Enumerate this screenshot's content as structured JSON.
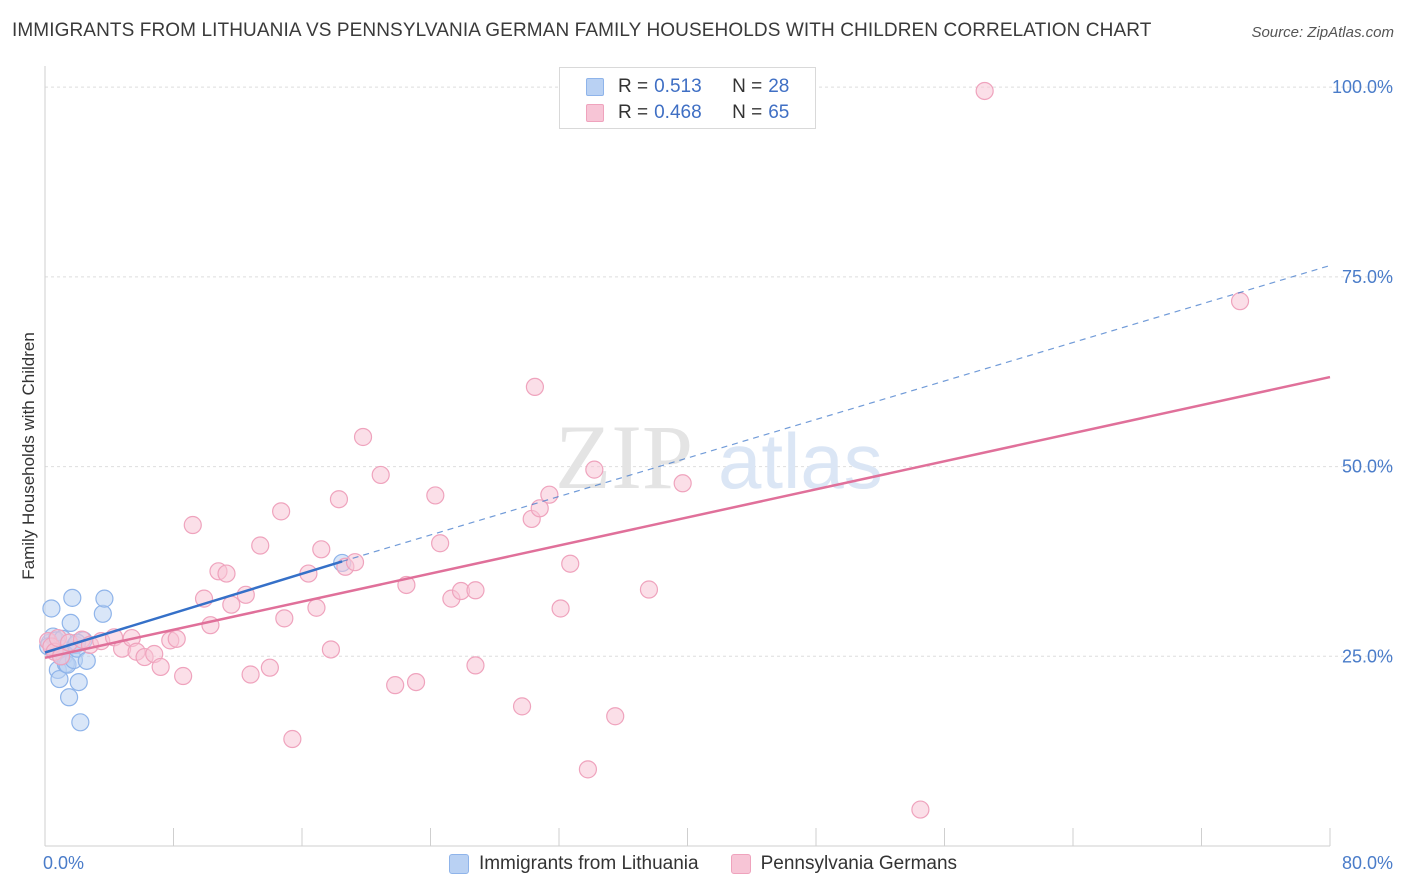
{
  "title": "IMMIGRANTS FROM LITHUANIA VS PENNSYLVANIA GERMAN FAMILY HOUSEHOLDS WITH CHILDREN CORRELATION CHART",
  "source": "Source: ZipAtlas.com",
  "watermark": {
    "zip": "ZIP",
    "atlas": "atlas"
  },
  "legend": {
    "rows": [
      {
        "r_label": "R =",
        "r_value": "0.513",
        "n_label": "N =",
        "n_value": "28"
      },
      {
        "r_label": "R =",
        "r_value": "0.468",
        "n_label": "N =",
        "n_value": "65"
      }
    ]
  },
  "chart_data": {
    "type": "scatter",
    "title": "IMMIGRANTS FROM LITHUANIA VS PENNSYLVANIA GERMAN FAMILY HOUSEHOLDS WITH CHILDREN CORRELATION CHART",
    "xlabel": "",
    "ylabel": "Family Households with Children",
    "xlim": [
      0,
      80
    ],
    "ylim": [
      0,
      102
    ],
    "x_tick_labels": [
      "0.0%",
      "80.0%"
    ],
    "y_ticks": [
      25,
      50,
      75,
      100
    ],
    "y_tick_labels": [
      "25.0%",
      "50.0%",
      "75.0%",
      "100.0%"
    ],
    "grid": true,
    "series": [
      {
        "name": "Immigrants from Lithuania",
        "color": "#8fb4ea",
        "fill": "#b9d1f3",
        "line_color": "#3570c8",
        "trend": {
          "x0": 0,
          "y0": 25.5,
          "x1": 18.5,
          "y1": 37.5
        },
        "trend_ext": {
          "x0": 18.5,
          "y0": 37.5,
          "x1": 80,
          "y1": 76.5
        },
        "points": [
          [
            0.3,
            26.8
          ],
          [
            0.4,
            31.3
          ],
          [
            0.5,
            27.6
          ],
          [
            0.6,
            25.6
          ],
          [
            0.7,
            27.1
          ],
          [
            0.8,
            23.2
          ],
          [
            0.9,
            22.0
          ],
          [
            1.0,
            26.0
          ],
          [
            1.1,
            27.3
          ],
          [
            1.2,
            25.1
          ],
          [
            1.3,
            24.0
          ],
          [
            1.4,
            23.9
          ],
          [
            1.5,
            19.6
          ],
          [
            1.6,
            29.4
          ],
          [
            1.7,
            32.7
          ],
          [
            1.8,
            24.5
          ],
          [
            1.9,
            26.5
          ],
          [
            2.0,
            26.0
          ],
          [
            2.1,
            21.6
          ],
          [
            2.2,
            16.3
          ],
          [
            2.4,
            27.1
          ],
          [
            2.6,
            24.4
          ],
          [
            3.6,
            30.6
          ],
          [
            3.7,
            32.6
          ],
          [
            18.5,
            37.3
          ],
          [
            0.2,
            26.3
          ],
          [
            1.0,
            25.0
          ],
          [
            2.0,
            26.8
          ]
        ]
      },
      {
        "name": "Pennsylvania Germans",
        "color": "#efa3bd",
        "fill": "#f7c5d6",
        "line_color": "#e0709a",
        "trend": {
          "x0": 0,
          "y0": 24.8,
          "x1": 80,
          "y1": 61.8
        },
        "points": [
          [
            0.2,
            27.0
          ],
          [
            0.4,
            26.3
          ],
          [
            0.6,
            25.6
          ],
          [
            0.8,
            27.4
          ],
          [
            1.0,
            25.0
          ],
          [
            1.5,
            26.8
          ],
          [
            2.3,
            27.2
          ],
          [
            2.8,
            26.5
          ],
          [
            3.5,
            27.0
          ],
          [
            4.3,
            27.5
          ],
          [
            4.8,
            26.0
          ],
          [
            5.4,
            27.4
          ],
          [
            5.7,
            25.6
          ],
          [
            6.2,
            24.9
          ],
          [
            6.8,
            25.3
          ],
          [
            7.2,
            23.6
          ],
          [
            7.8,
            27.1
          ],
          [
            8.2,
            27.3
          ],
          [
            8.6,
            22.4
          ],
          [
            9.2,
            42.3
          ],
          [
            9.9,
            32.6
          ],
          [
            10.3,
            29.1
          ],
          [
            10.8,
            36.2
          ],
          [
            11.3,
            35.9
          ],
          [
            11.6,
            31.8
          ],
          [
            12.5,
            33.1
          ],
          [
            12.8,
            22.6
          ],
          [
            13.4,
            39.6
          ],
          [
            14.0,
            23.5
          ],
          [
            14.7,
            44.1
          ],
          [
            14.9,
            30.0
          ],
          [
            15.4,
            14.1
          ],
          [
            16.4,
            35.9
          ],
          [
            16.9,
            31.4
          ],
          [
            17.2,
            39.1
          ],
          [
            17.8,
            25.9
          ],
          [
            18.3,
            45.7
          ],
          [
            18.7,
            36.8
          ],
          [
            19.3,
            37.4
          ],
          [
            19.8,
            53.9
          ],
          [
            20.9,
            48.9
          ],
          [
            21.8,
            21.2
          ],
          [
            22.5,
            34.4
          ],
          [
            23.1,
            21.6
          ],
          [
            24.3,
            46.2
          ],
          [
            24.6,
            39.9
          ],
          [
            25.3,
            32.6
          ],
          [
            25.9,
            33.6
          ],
          [
            26.8,
            23.8
          ],
          [
            26.8,
            33.7
          ],
          [
            29.7,
            18.4
          ],
          [
            30.3,
            43.1
          ],
          [
            30.5,
            60.5
          ],
          [
            30.8,
            44.5
          ],
          [
            31.4,
            46.3
          ],
          [
            32.1,
            31.3
          ],
          [
            32.7,
            37.2
          ],
          [
            33.8,
            10.1
          ],
          [
            34.2,
            49.6
          ],
          [
            35.5,
            17.1
          ],
          [
            37.6,
            33.8
          ],
          [
            39.7,
            47.8
          ],
          [
            54.5,
            4.8
          ],
          [
            58.5,
            99.5
          ],
          [
            74.4,
            71.8
          ]
        ]
      }
    ]
  },
  "bottom_legend": [
    "Immigrants from Lithuania",
    "Pennsylvania Germans"
  ]
}
